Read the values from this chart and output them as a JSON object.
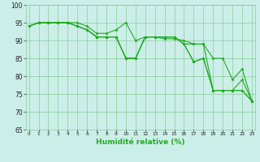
{
  "xlabel": "Humidité relative (%)",
  "bg_color": "#cceee8",
  "grid_color": "#88cc99",
  "line_color": "#22aa22",
  "x_values": [
    0,
    1,
    2,
    3,
    4,
    5,
    6,
    7,
    8,
    9,
    10,
    11,
    12,
    13,
    14,
    15,
    16,
    17,
    18,
    19,
    20,
    21,
    22,
    23
  ],
  "line1": [
    94,
    95,
    95,
    95,
    95,
    95,
    94,
    92,
    92,
    93,
    95,
    90,
    91,
    91,
    90.5,
    90.5,
    90,
    89,
    89,
    85,
    85,
    79,
    82,
    73
  ],
  "line2": [
    94,
    95,
    95,
    95,
    95,
    94,
    93,
    91,
    91,
    91,
    85,
    85,
    91,
    91,
    91,
    91,
    89,
    89,
    89,
    76,
    76,
    76,
    79,
    73
  ],
  "line3": [
    94,
    95,
    95,
    95,
    95,
    94,
    93,
    91,
    91,
    91,
    85,
    85,
    91,
    91,
    91,
    91,
    89,
    84,
    85,
    76,
    76,
    76,
    76,
    73
  ],
  "line4": [
    94,
    95,
    95,
    95,
    95,
    94,
    93,
    91,
    91,
    91,
    85,
    85,
    91,
    91,
    91,
    91,
    89,
    84,
    85,
    76,
    76,
    76,
    76,
    73
  ],
  "ylim": [
    65,
    100
  ],
  "yticks": [
    65,
    70,
    75,
    80,
    85,
    90,
    95,
    100
  ],
  "xlim": [
    -0.3,
    23.3
  ],
  "figsize": [
    3.2,
    2.0
  ],
  "dpi": 100
}
